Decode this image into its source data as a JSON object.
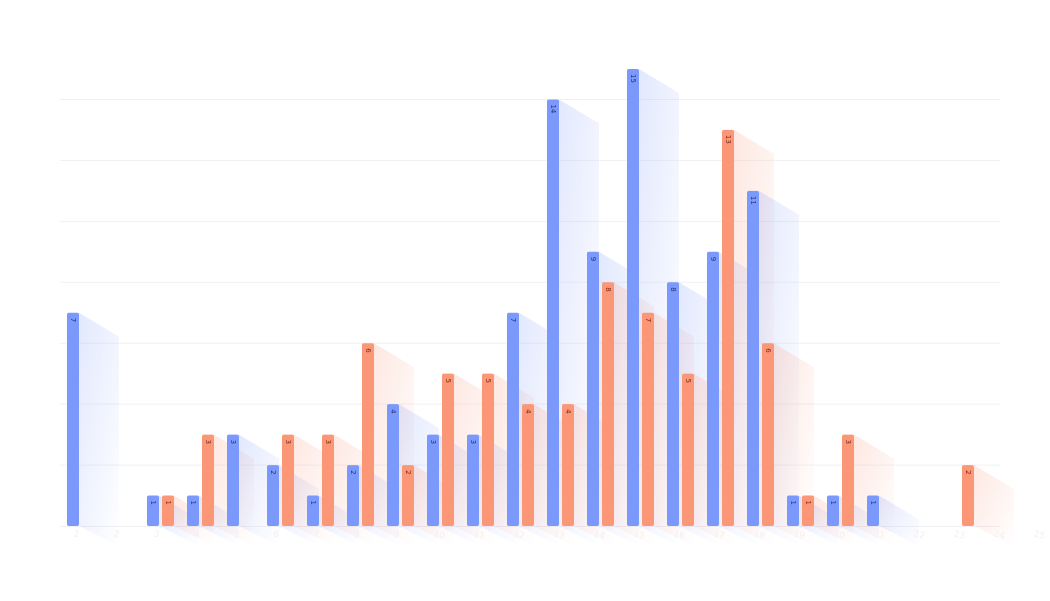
{
  "colors": {
    "series_a": "#7b98fb",
    "series_b": "#fb9677",
    "label_a": "#25327a",
    "label_b": "#7a2a16",
    "gridline": "#f1f1f5"
  },
  "chart_data": {
    "type": "bar",
    "title": "",
    "xlabel": "",
    "ylabel": "",
    "ylim": [
      0,
      15
    ],
    "grid": true,
    "legend": "none",
    "categories": [
      "1",
      "2",
      "3",
      "4",
      "5",
      "6",
      "7",
      "8",
      "9",
      "10",
      "11",
      "12",
      "13",
      "14",
      "15",
      "16",
      "17",
      "18",
      "19",
      "20",
      "21",
      "22",
      "23",
      "24",
      "25"
    ],
    "series": [
      {
        "values": [
          7,
          null,
          1,
          1,
          3,
          2,
          1,
          2,
          4,
          3,
          3,
          7,
          14,
          9,
          15,
          8,
          9,
          11,
          1,
          1,
          1,
          null,
          null,
          null,
          null
        ]
      },
      {
        "values": [
          null,
          null,
          1,
          3,
          null,
          3,
          3,
          6,
          2,
          5,
          5,
          4,
          4,
          8,
          7,
          5,
          13,
          6,
          1,
          3,
          null,
          null,
          2,
          null,
          null
        ]
      }
    ]
  }
}
